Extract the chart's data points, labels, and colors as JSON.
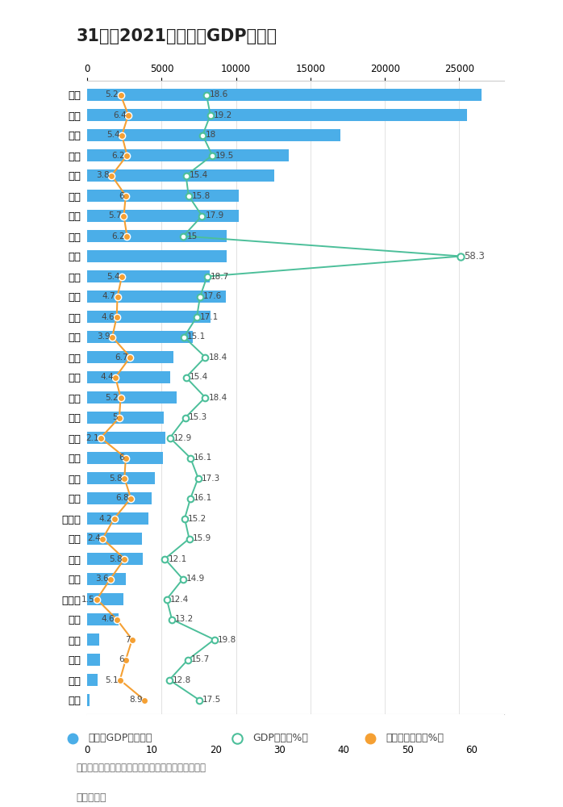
{
  "title": "31省份2021年一季度GDP及增速",
  "provinces": [
    "广东",
    "江苏",
    "山东",
    "浙江",
    "河南",
    "四川",
    "福建",
    "湖南",
    "湖北",
    "安徽",
    "上海",
    "北京",
    "河北",
    "江西",
    "陕西",
    "重庆",
    "云南",
    "辽宁",
    "广西",
    "山西",
    "贵州",
    "内蒙古",
    "天津",
    "新疆",
    "吉林",
    "黑龙江",
    "甘肃",
    "海南",
    "宁夏",
    "青海",
    "西藏"
  ],
  "gdp_real": [
    26481,
    25531,
    17026,
    13527,
    12546,
    10172,
    10159,
    9356,
    9364,
    8206,
    9326,
    8267,
    7090,
    5774,
    5597,
    6026,
    5131,
    5258,
    5109,
    4567,
    4340,
    4102,
    3703,
    3710,
    2580,
    2446,
    2113,
    810,
    880,
    703,
    174
  ],
  "gdp_growth": [
    18.6,
    19.2,
    18.0,
    19.5,
    15.4,
    15.8,
    17.9,
    15.0,
    58.3,
    18.7,
    17.6,
    17.1,
    15.1,
    18.4,
    15.4,
    18.4,
    15.3,
    12.9,
    16.1,
    17.3,
    16.1,
    15.2,
    15.9,
    12.1,
    14.9,
    12.4,
    13.2,
    19.8,
    15.7,
    12.8,
    17.5
  ],
  "gdp_growth_labels": [
    "18.6",
    "19.2",
    "18",
    "19.5",
    "15.4",
    "15.8",
    "17.9",
    "15",
    "58.3",
    "18.7",
    "17.6",
    "17.1",
    "15.1",
    "18.4",
    "15.4",
    "18.4",
    "15.3",
    "12.9",
    "16.1",
    "17.3",
    "16.1",
    "15.2",
    "15.9",
    "12.1",
    "14.9",
    "12.4",
    "13.2",
    "19.8",
    "15.7",
    "12.8",
    "17.5"
  ],
  "two_year_avg": [
    5.2,
    6.4,
    5.4,
    6.2,
    3.8,
    6.0,
    5.7,
    6.2,
    null,
    5.4,
    4.7,
    4.6,
    3.9,
    6.7,
    4.4,
    5.2,
    5.0,
    2.1,
    6.0,
    5.8,
    6.8,
    4.2,
    2.4,
    5.8,
    3.6,
    1.5,
    4.6,
    7.0,
    6.0,
    5.1,
    8.9
  ],
  "two_year_labels": [
    "5.2",
    "6.4",
    "5.4",
    "6.2",
    "3.8",
    "6",
    "5.7",
    "6.2",
    null,
    "5.4",
    "4.7",
    "4.6",
    "3.9",
    "6.7",
    "4.4",
    "5.2",
    "5",
    "2.1",
    "6",
    "5.8",
    "6.8",
    "4.2",
    "2.4",
    "5.8",
    "3.6",
    "1.5",
    "4.6",
    "7",
    "6",
    "5.1",
    "8.9"
  ],
  "bar_color": "#4BAEE8",
  "green_color": "#4CBF9A",
  "orange_color": "#F5A033",
  "bg_color": "#FFFFFF",
  "gdp_xlim": 28000,
  "rate_xlim": 65,
  "gdp_xticks": [
    0,
    5000,
    10000,
    15000,
    20000,
    25000
  ],
  "rate_xticks": [
    0,
    10,
    20,
    30,
    40,
    50,
    60
  ],
  "xlabel_bottom": "数据来源：各地统计局（湖北两年平均增速未公布）",
  "footer": "城市进化论"
}
